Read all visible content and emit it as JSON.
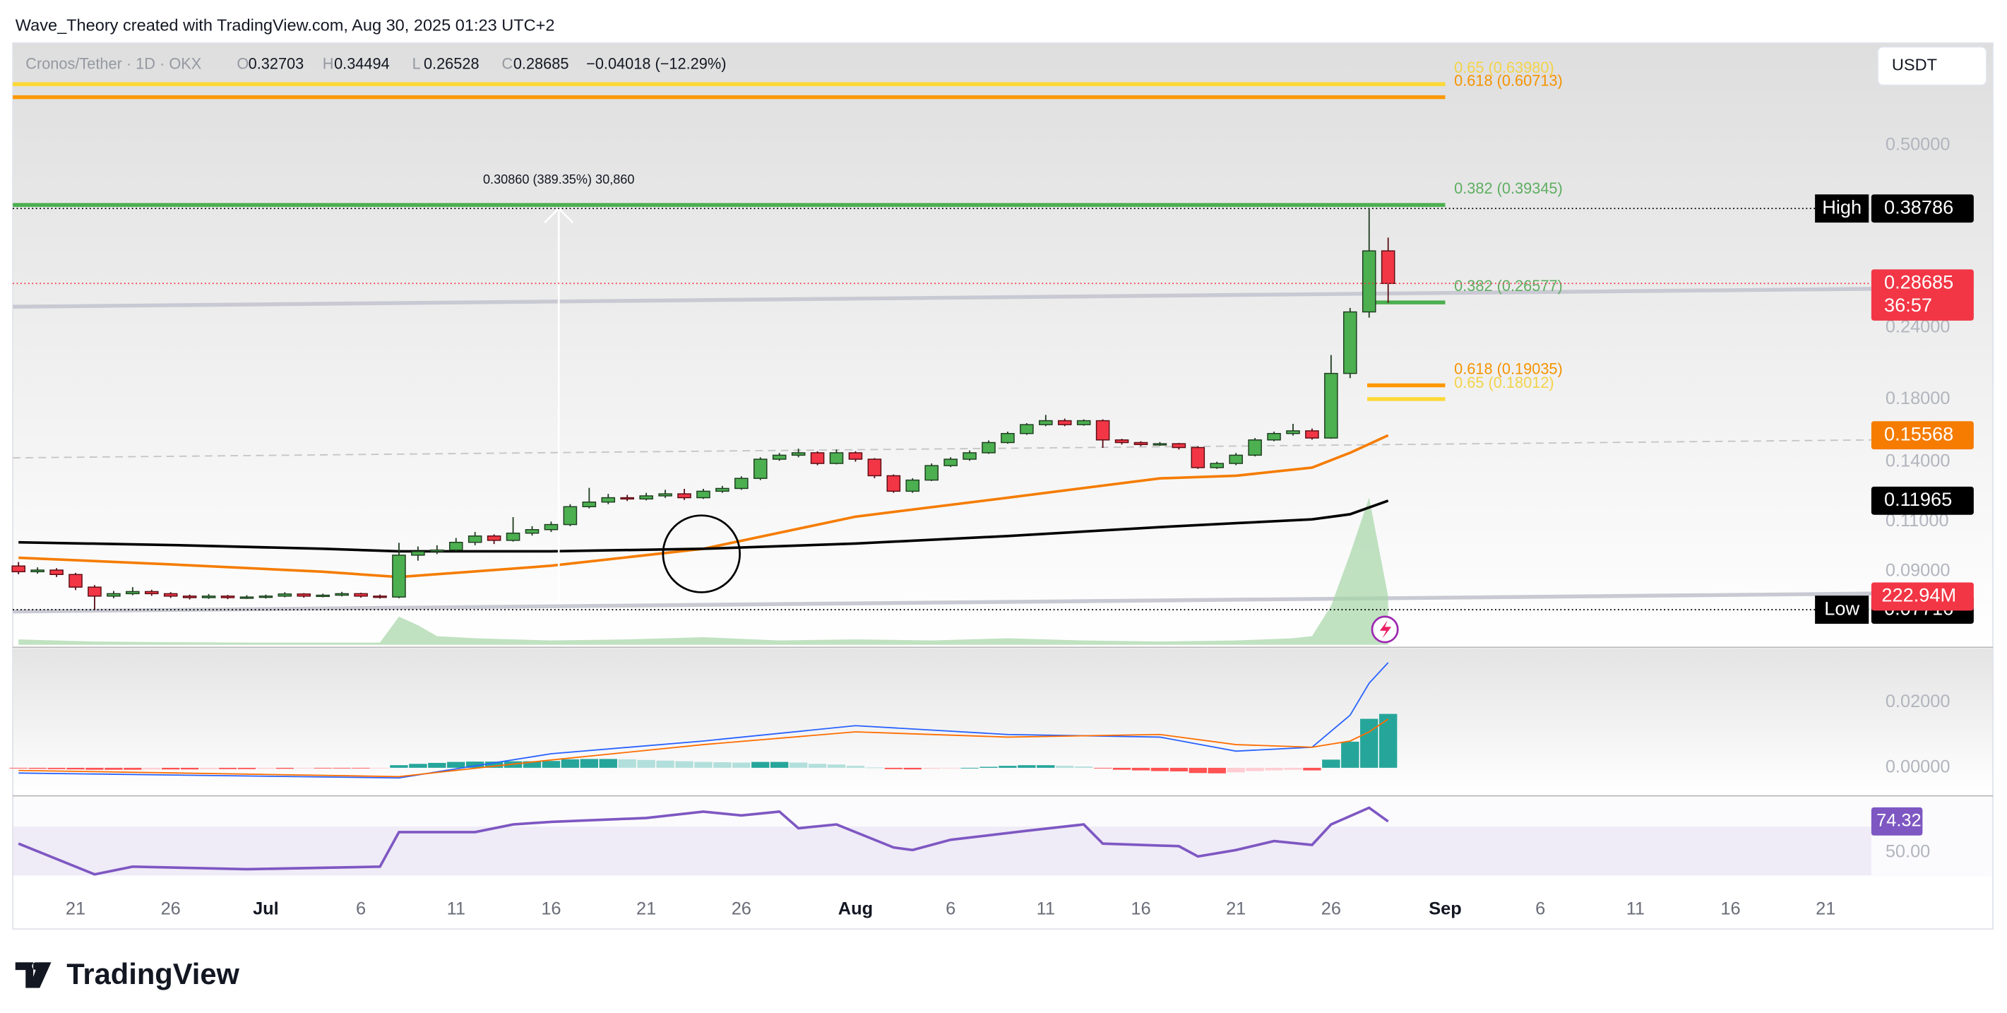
{
  "header": {
    "credit": "Wave_Theory created with TradingView.com, Aug 30, 2025 01:23 UTC+2",
    "logo": "TradingView"
  },
  "chart_data": {
    "type": "candlestick",
    "symbol": "Cronos/Tether · 1D · OKX",
    "currency": "USDT",
    "ohlc_legend": [
      {
        "label": "O",
        "value": 0.32703
      },
      {
        "label": "H",
        "value": 0.34494
      },
      {
        "label": "L",
        "value": 0.26528
      },
      {
        "label": "C",
        "value": 0.28685
      }
    ],
    "change": "−0.04018 (−12.29%)",
    "log_scale": true,
    "grid": false,
    "xlim": [
      -0.3,
      97.4
    ],
    "xticks": [
      {
        "value": 3,
        "label": "21"
      },
      {
        "value": 8,
        "label": "26"
      },
      {
        "value": 13,
        "label": "Jul"
      },
      {
        "value": 18,
        "label": "6"
      },
      {
        "value": 23,
        "label": "11"
      },
      {
        "value": 28,
        "label": "16"
      },
      {
        "value": 33,
        "label": "21"
      },
      {
        "value": 38,
        "label": "26"
      },
      {
        "value": 44,
        "label": "Aug"
      },
      {
        "value": 49,
        "label": "6"
      },
      {
        "value": 54,
        "label": "11"
      },
      {
        "value": 59,
        "label": "16"
      },
      {
        "value": 64,
        "label": "21"
      },
      {
        "value": 69,
        "label": "26"
      },
      {
        "value": 75,
        "label": "Sep"
      },
      {
        "value": 80,
        "label": "6"
      },
      {
        "value": 85,
        "label": "11"
      },
      {
        "value": 90,
        "label": "16"
      },
      {
        "value": 95,
        "label": "21"
      }
    ],
    "ylim": [
      0.067,
      0.755
    ],
    "yticks": [
      {
        "value": 0.5,
        "label": "0.50000"
      },
      {
        "value": 0.24,
        "label": "0.24000"
      },
      {
        "value": 0.18,
        "label": "0.18000"
      },
      {
        "value": 0.14,
        "label": "0.14000"
      },
      {
        "value": 0.11,
        "label": "0.11000"
      },
      {
        "value": 0.09,
        "label": "0.09000"
      }
    ],
    "up_color": "#4caf50",
    "down_color": "#f23645",
    "open": [
      0.092,
      0.0899,
      0.0905,
      0.0889,
      0.0845,
      0.0815,
      0.0823,
      0.083,
      0.0823,
      0.0815,
      0.081,
      0.0815,
      0.081,
      0.0812,
      0.0815,
      0.0822,
      0.0815,
      0.0818,
      0.0823,
      0.0815,
      0.0812,
      0.0961,
      0.0975,
      0.0981,
      0.1012,
      0.1038,
      0.102,
      0.105,
      0.1065,
      0.1087,
      0.1168,
      0.119,
      0.1211,
      0.1205,
      0.122,
      0.123,
      0.1211,
      0.1243,
      0.1257,
      0.1309,
      0.1414,
      0.1437,
      0.1451,
      0.139,
      0.1451,
      0.1414,
      0.1323,
      0.1243,
      0.13,
      0.1378,
      0.1414,
      0.1451,
      0.1512,
      0.1568,
      0.1625,
      0.1651,
      0.1625,
      0.1651,
      0.1528,
      0.1512,
      0.15,
      0.1505,
      0.1482,
      0.1367,
      0.139,
      0.1437,
      0.1528,
      0.1568,
      0.1585,
      0.154,
      0.1997,
      0.2558,
      0.32703
    ],
    "high": [
      0.0935,
      0.0915,
      0.0912,
      0.0895,
      0.0852,
      0.0832,
      0.0845,
      0.0836,
      0.0828,
      0.082,
      0.0822,
      0.0819,
      0.0818,
      0.082,
      0.0828,
      0.0825,
      0.0823,
      0.0829,
      0.0826,
      0.082,
      0.101,
      0.0995,
      0.1,
      0.103,
      0.1055,
      0.1045,
      0.112,
      0.108,
      0.11,
      0.118,
      0.126,
      0.123,
      0.1225,
      0.1235,
      0.125,
      0.1255,
      0.1255,
      0.127,
      0.132,
      0.1425,
      0.145,
      0.1475,
      0.146,
      0.147,
      0.146,
      0.142,
      0.133,
      0.131,
      0.139,
      0.1425,
      0.1465,
      0.1525,
      0.158,
      0.1635,
      0.169,
      0.1665,
      0.166,
      0.166,
      0.1535,
      0.152,
      0.1515,
      0.151,
      0.149,
      0.14,
      0.145,
      0.154,
      0.158,
      0.163,
      0.16,
      0.215,
      0.26,
      0.38786,
      0.34494
    ],
    "low": [
      0.089,
      0.0892,
      0.088,
      0.0835,
      0.07716,
      0.0808,
      0.0818,
      0.0816,
      0.0809,
      0.0804,
      0.0806,
      0.0805,
      0.0806,
      0.0807,
      0.0811,
      0.081,
      0.0811,
      0.0814,
      0.081,
      0.0807,
      0.0808,
      0.094,
      0.0965,
      0.0975,
      0.1,
      0.1005,
      0.1015,
      0.104,
      0.1055,
      0.108,
      0.116,
      0.118,
      0.1195,
      0.1198,
      0.121,
      0.12,
      0.1205,
      0.1235,
      0.125,
      0.13,
      0.1405,
      0.1425,
      0.138,
      0.1385,
      0.14,
      0.131,
      0.1235,
      0.1235,
      0.1295,
      0.137,
      0.1405,
      0.1445,
      0.1505,
      0.156,
      0.1615,
      0.1615,
      0.1618,
      0.148,
      0.15,
      0.149,
      0.1492,
      0.147,
      0.136,
      0.136,
      0.138,
      0.143,
      0.152,
      0.1555,
      0.153,
      0.1535,
      0.196,
      0.25,
      0.26528
    ],
    "close": [
      0.0899,
      0.0905,
      0.0889,
      0.0845,
      0.0815,
      0.0823,
      0.083,
      0.0823,
      0.0815,
      0.081,
      0.0815,
      0.081,
      0.0812,
      0.0815,
      0.0822,
      0.0815,
      0.0818,
      0.0823,
      0.0815,
      0.0812,
      0.0961,
      0.0975,
      0.0981,
      0.1012,
      0.1038,
      0.102,
      0.105,
      0.1065,
      0.1087,
      0.1168,
      0.119,
      0.1211,
      0.1205,
      0.122,
      0.123,
      0.1211,
      0.1243,
      0.1257,
      0.1309,
      0.1414,
      0.1437,
      0.1451,
      0.139,
      0.1451,
      0.1414,
      0.1323,
      0.1243,
      0.13,
      0.1378,
      0.1414,
      0.1451,
      0.1512,
      0.1568,
      0.1625,
      0.1651,
      0.1625,
      0.1651,
      0.1528,
      0.1512,
      0.15,
      0.1505,
      0.1482,
      0.1367,
      0.139,
      0.1437,
      0.1528,
      0.1568,
      0.1585,
      0.154,
      0.1997,
      0.2558,
      0.32703,
      0.28685
    ],
    "overlays": [
      {
        "color": "#f57c00",
        "x": [
          0,
          8,
          16,
          20,
          28,
          36,
          44,
          52,
          60,
          64,
          68,
          70,
          72
        ],
        "values": [
          0.0951,
          0.0926,
          0.0899,
          0.088,
          0.0921,
          0.0986,
          0.1122,
          0.1211,
          0.1309,
          0.1323,
          0.1367,
          0.1451,
          0.15568
        ]
      },
      {
        "color": "#000000",
        "x": [
          0,
          8,
          16,
          20,
          28,
          36,
          44,
          52,
          60,
          64,
          68,
          70,
          72
        ],
        "values": [
          0.1012,
          0.1001,
          0.0986,
          0.0976,
          0.0976,
          0.0986,
          0.1007,
          0.1038,
          0.1076,
          0.1093,
          0.111,
          0.1133,
          0.11965
        ]
      }
    ],
    "fib_levels": [
      {
        "label": "0.65 (0.63980)",
        "value": 0.6398,
        "color": "#fdd835",
        "text_color": "#f3d34a",
        "xrange": [
          -0.3,
          75
        ]
      },
      {
        "label": "0.618 (0.60713)",
        "value": 0.60713,
        "color": "#ff9800",
        "text_color": "#f59300",
        "xrange": [
          -0.3,
          75
        ]
      },
      {
        "label": "0.382 (0.39345)",
        "value": 0.39345,
        "color": "#4caf50",
        "text_color": "#5fae62",
        "xrange": [
          -0.3,
          75
        ]
      },
      {
        "label": "0.382 (0.26577)",
        "value": 0.26577,
        "color": "#4caf50",
        "text_color": "#5fae62",
        "xrange": [
          70.9,
          75
        ]
      },
      {
        "label": "0.618 (0.19035)",
        "value": 0.19035,
        "color": "#ff9800",
        "text_color": "#f59300",
        "xrange": [
          70.9,
          75
        ]
      },
      {
        "label": "0.65 (0.18012)",
        "value": 0.18012,
        "color": "#fdd835",
        "text_color": "#f3d34a",
        "xrange": [
          70.9,
          75
        ]
      }
    ],
    "measure": {
      "label": "0.30860 (389.35%) 30,860",
      "x": 28.4,
      "from": 0.07926,
      "to": 0.38786
    },
    "price_tags": [
      {
        "label": "High",
        "value": 0.38786,
        "color": "#000000",
        "line": "dotted"
      },
      {
        "value": 0.28685,
        "countdown": "36:57",
        "color": "#f23645",
        "line": "dotted"
      },
      {
        "value": 0.15568,
        "color": "#f57c00"
      },
      {
        "value": 0.11965,
        "color": "#000000"
      },
      {
        "label": "Low",
        "value": 0.07716,
        "color": "#000000",
        "line": "dotted"
      }
    ],
    "volume": {
      "x": [
        0,
        4,
        8,
        12,
        16,
        19,
        20,
        21,
        22,
        24,
        28,
        32,
        36,
        40,
        44,
        48,
        52,
        56,
        60,
        64,
        67,
        68,
        69,
        70,
        71,
        72
      ],
      "values": [
        25,
        15,
        12,
        10,
        10,
        10,
        130,
        90,
        40,
        30,
        20,
        25,
        35,
        20,
        25,
        20,
        30,
        20,
        15,
        20,
        30,
        40,
        180,
        420,
        680,
        222.94
      ],
      "value_label": "222.94M",
      "color": "#a5d6a7",
      "tag_color": "#f23645"
    },
    "macd": {
      "ylim": [
        -0.0082,
        0.0357
      ],
      "yticks": [
        {
          "value": 0.02,
          "label": "0.02000"
        },
        {
          "value": 0,
          "label": "0.00000"
        }
      ],
      "histogram": [
        -0.0002,
        -0.0003,
        -0.0004,
        -0.0005,
        -0.0006,
        -0.0006,
        -0.0006,
        -0.0005,
        -0.0005,
        -0.0005,
        -0.0004,
        -0.0004,
        -0.0004,
        -0.0003,
        -0.0003,
        -0.0002,
        -0.0002,
        -0.0002,
        -0.0002,
        -0.0001,
        0.0008,
        0.0012,
        0.0015,
        0.0018,
        0.0019,
        0.0019,
        0.002,
        0.002,
        0.0021,
        0.0026,
        0.0027,
        0.0027,
        0.0026,
        0.0024,
        0.0022,
        0.002,
        0.0018,
        0.0017,
        0.0016,
        0.0018,
        0.0018,
        0.0016,
        0.0012,
        0.001,
        0.0006,
        0.0001,
        -0.0004,
        -0.0005,
        -0.0003,
        -0.0002,
        0.0,
        0.0003,
        0.0006,
        0.0008,
        0.0008,
        0.0006,
        0.0004,
        -0.0002,
        -0.0006,
        -0.0008,
        -0.001,
        -0.0011,
        -0.0016,
        -0.0017,
        -0.0014,
        -0.001,
        -0.0008,
        -0.0006,
        -0.0008,
        0.0025,
        0.008,
        0.015,
        0.0165
      ],
      "lines": [
        {
          "color": "#2962ff",
          "x": [
            0,
            20,
            28,
            36,
            44,
            52,
            60,
            64,
            68,
            70,
            71,
            72
          ],
          "values": [
            -0.0016,
            -0.0031,
            0.0043,
            0.0082,
            0.0129,
            0.0102,
            0.0094,
            0.0051,
            0.0063,
            0.0161,
            0.0259,
            0.0322
          ]
        },
        {
          "color": "#ff6d00",
          "x": [
            0,
            20,
            28,
            36,
            44,
            52,
            60,
            64,
            68,
            70,
            71,
            72
          ],
          "values": [
            -0.0008,
            -0.0027,
            0.0024,
            0.0071,
            0.011,
            0.0094,
            0.0102,
            0.0071,
            0.0063,
            0.0082,
            0.011,
            0.0149
          ]
        }
      ]
    },
    "rsi": {
      "ylim": [
        32.3,
        92.3
      ],
      "yticks": [
        {
          "value": 50,
          "label": "50.00"
        }
      ],
      "color": "#7e57c2",
      "x": [
        0,
        4,
        6,
        12,
        19,
        20,
        24,
        26,
        28,
        33,
        36,
        38,
        40,
        41,
        43,
        46,
        47,
        49,
        53,
        56,
        57,
        61,
        62,
        64,
        66,
        68,
        69,
        71,
        72
      ],
      "values": [
        57,
        33,
        39,
        37,
        39,
        66,
        66,
        72,
        74,
        77,
        82,
        79,
        82,
        69,
        72,
        54,
        52,
        60,
        67,
        72,
        57,
        55,
        47,
        52,
        59,
        56,
        72,
        85,
        74.32
      ]
    }
  }
}
